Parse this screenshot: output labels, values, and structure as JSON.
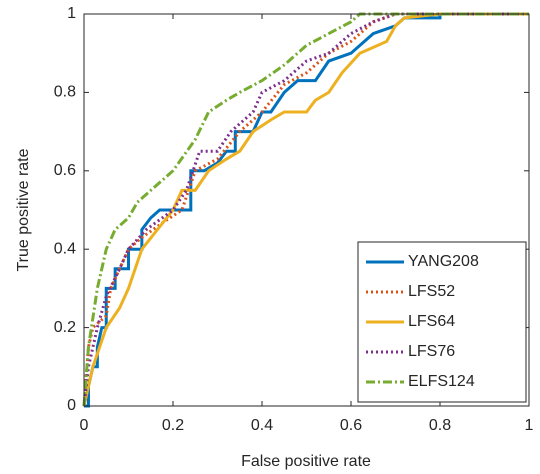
{
  "chart_data": {
    "type": "line",
    "xlabel": "False positive rate",
    "ylabel": "True positive rate",
    "xlim": [
      0,
      1
    ],
    "ylim": [
      0,
      1
    ],
    "xticks": [
      0,
      0.2,
      0.4,
      0.6,
      0.8,
      1
    ],
    "yticks": [
      0,
      0.2,
      0.4,
      0.6,
      0.8,
      1
    ],
    "grid": false,
    "legend": "lower right",
    "series": [
      {
        "name": "YANG208",
        "color": "#0072BD",
        "dash": "solid",
        "x": [
          0,
          0.01,
          0.01,
          0.02,
          0.03,
          0.03,
          0.04,
          0.05,
          0.05,
          0.07,
          0.07,
          0.1,
          0.1,
          0.13,
          0.13,
          0.15,
          0.17,
          0.24,
          0.24,
          0.27,
          0.3,
          0.32,
          0.34,
          0.34,
          0.38,
          0.4,
          0.42,
          0.45,
          0.48,
          0.52,
          0.55,
          0.6,
          0.65,
          0.7,
          0.72,
          0.8,
          0.8,
          1
        ],
        "values": [
          0,
          0,
          0.05,
          0.1,
          0.1,
          0.15,
          0.2,
          0.2,
          0.3,
          0.3,
          0.35,
          0.35,
          0.4,
          0.4,
          0.45,
          0.48,
          0.5,
          0.5,
          0.6,
          0.6,
          0.62,
          0.65,
          0.65,
          0.7,
          0.7,
          0.75,
          0.75,
          0.8,
          0.83,
          0.83,
          0.88,
          0.9,
          0.95,
          0.97,
          0.99,
          0.99,
          1,
          1
        ]
      },
      {
        "name": "LFS52",
        "color": "#D95319",
        "dash": "dotted",
        "x": [
          0,
          0.01,
          0.02,
          0.05,
          0.06,
          0.1,
          0.13,
          0.18,
          0.22,
          0.25,
          0.3,
          0.35,
          0.4,
          0.45,
          0.5,
          0.55,
          0.6,
          0.65,
          0.7,
          1
        ],
        "values": [
          0,
          0.15,
          0.2,
          0.23,
          0.3,
          0.4,
          0.43,
          0.47,
          0.5,
          0.6,
          0.63,
          0.7,
          0.75,
          0.82,
          0.85,
          0.9,
          0.93,
          0.98,
          1,
          1
        ]
      },
      {
        "name": "LFS64",
        "color": "#EDB120",
        "dash": "solid",
        "x": [
          0,
          0.02,
          0.05,
          0.08,
          0.1,
          0.13,
          0.2,
          0.22,
          0.25,
          0.28,
          0.32,
          0.35,
          0.38,
          0.42,
          0.45,
          0.5,
          0.52,
          0.55,
          0.58,
          0.62,
          0.68,
          0.7,
          0.72,
          0.8,
          1
        ],
        "values": [
          0,
          0.1,
          0.2,
          0.25,
          0.3,
          0.4,
          0.5,
          0.55,
          0.55,
          0.6,
          0.63,
          0.65,
          0.7,
          0.73,
          0.75,
          0.75,
          0.78,
          0.8,
          0.85,
          0.9,
          0.93,
          0.97,
          0.99,
          1,
          1
        ]
      },
      {
        "name": "LFS76",
        "color": "#7E2F8E",
        "dash": "dotted",
        "x": [
          0,
          0.01,
          0.03,
          0.05,
          0.08,
          0.1,
          0.14,
          0.2,
          0.23,
          0.26,
          0.3,
          0.33,
          0.38,
          0.4,
          0.45,
          0.5,
          0.55,
          0.6,
          0.65,
          0.7,
          1
        ],
        "values": [
          0,
          0.1,
          0.2,
          0.28,
          0.35,
          0.4,
          0.45,
          0.5,
          0.55,
          0.65,
          0.65,
          0.7,
          0.75,
          0.8,
          0.83,
          0.88,
          0.9,
          0.95,
          0.98,
          1,
          1
        ]
      },
      {
        "name": "ELFS124",
        "color": "#77AC30",
        "dash": "dashdot",
        "x": [
          0,
          0.01,
          0.03,
          0.05,
          0.07,
          0.1,
          0.12,
          0.15,
          0.2,
          0.25,
          0.28,
          0.32,
          0.35,
          0.4,
          0.45,
          0.5,
          0.55,
          0.6,
          0.62,
          1
        ],
        "values": [
          0,
          0.15,
          0.3,
          0.4,
          0.45,
          0.48,
          0.52,
          0.55,
          0.6,
          0.68,
          0.75,
          0.78,
          0.8,
          0.83,
          0.87,
          0.92,
          0.95,
          0.98,
          1,
          1
        ]
      }
    ]
  }
}
